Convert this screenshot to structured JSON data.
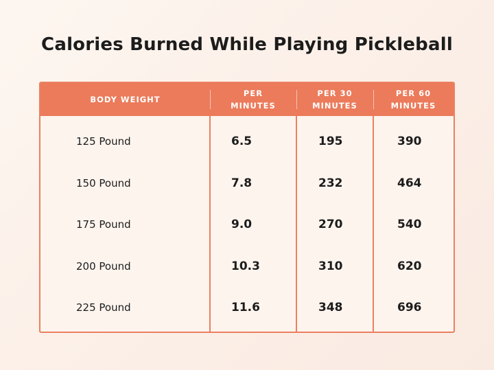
{
  "title": "Calories Burned While Playing Pickleball",
  "chart_data": {
    "type": "table",
    "title": "Calories Burned While Playing Pickleball",
    "columns": [
      "BODY WEIGHT",
      "PER MINUTES",
      "PER 30 MINUTES",
      "PER 60 MINUTES"
    ],
    "rows": [
      [
        "125 Pound",
        "6.5",
        "195",
        "390"
      ],
      [
        "150 Pound",
        "7.8",
        "232",
        "464"
      ],
      [
        "175 Pound",
        "9.0",
        "270",
        "540"
      ],
      [
        "200 Pound",
        "10.3",
        "310",
        "620"
      ],
      [
        "225 Pound",
        "11.6",
        "348",
        "696"
      ]
    ]
  },
  "colors": {
    "header": "#eb7b5b",
    "border": "#eb7f5f",
    "background": "#fcf0e8",
    "text": "#1c1c1c"
  }
}
